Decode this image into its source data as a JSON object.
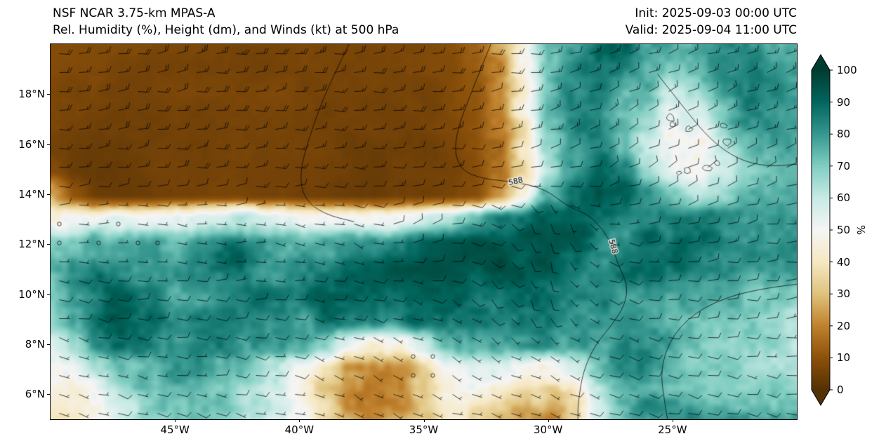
{
  "chart_data": {
    "type": "heatmap",
    "title": "NSF NCAR 3.75-km MPAS-A",
    "subtitle": "Rel. Humidity (%), Height (dm), and Winds (kt) at 500 hPa",
    "init_label": "Init: 2025-09-03 00:00 UTC",
    "valid_label": "Valid: 2025-09-04 11:00 UTC",
    "lon_range": [
      -50,
      -20
    ],
    "lat_range": [
      5,
      20
    ],
    "axes": {
      "x_ticks": [
        {
          "label": "45°W",
          "lon": -45
        },
        {
          "label": "40°W",
          "lon": -40
        },
        {
          "label": "35°W",
          "lon": -35
        },
        {
          "label": "30°W",
          "lon": -30
        },
        {
          "label": "25°W",
          "lon": -25
        }
      ],
      "y_ticks": [
        {
          "label": "6°N",
          "lat": 6
        },
        {
          "label": "8°N",
          "lat": 8
        },
        {
          "label": "10°N",
          "lat": 10
        },
        {
          "label": "12°N",
          "lat": 12
        },
        {
          "label": "14°N",
          "lat": 14
        },
        {
          "label": "16°N",
          "lat": 16
        },
        {
          "label": "18°N",
          "lat": 18
        }
      ]
    },
    "colorbar": {
      "label": "%",
      "ticks": [
        0,
        10,
        20,
        30,
        40,
        50,
        60,
        70,
        80,
        90,
        100
      ],
      "extend": "both",
      "stops": [
        {
          "v": 0,
          "c": "#543005"
        },
        {
          "v": 10,
          "c": "#8c510a"
        },
        {
          "v": 20,
          "c": "#bf812d"
        },
        {
          "v": 30,
          "c": "#dfc27d"
        },
        {
          "v": 40,
          "c": "#f6e8c3"
        },
        {
          "v": 50,
          "c": "#f5f5f5"
        },
        {
          "v": 60,
          "c": "#c7eae5"
        },
        {
          "v": 70,
          "c": "#80cdc1"
        },
        {
          "v": 80,
          "c": "#35978f"
        },
        {
          "v": 90,
          "c": "#01665e"
        },
        {
          "v": 100,
          "c": "#003c30"
        }
      ]
    },
    "rh_field": {
      "units": "%",
      "lon_start": -50,
      "lon_step": 1,
      "lat_start": 20,
      "lat_step": -1,
      "values": [
        [
          8,
          8,
          7,
          7,
          7,
          7,
          7,
          7,
          7,
          7,
          7,
          7,
          7,
          7,
          8,
          8,
          9,
          14,
          28,
          55,
          78,
          85,
          88,
          86,
          80,
          76,
          80,
          86,
          88,
          86,
          85
        ],
        [
          7,
          7,
          7,
          6,
          6,
          6,
          6,
          6,
          6,
          6,
          6,
          6,
          6,
          7,
          7,
          8,
          9,
          13,
          26,
          50,
          75,
          84,
          88,
          84,
          78,
          72,
          76,
          84,
          87,
          85,
          84
        ],
        [
          6,
          6,
          6,
          6,
          6,
          6,
          6,
          6,
          6,
          6,
          6,
          6,
          6,
          6,
          7,
          7,
          9,
          12,
          24,
          46,
          72,
          83,
          87,
          82,
          76,
          68,
          70,
          80,
          85,
          83,
          82
        ],
        [
          6,
          6,
          5,
          5,
          5,
          5,
          5,
          5,
          5,
          5,
          5,
          5,
          6,
          6,
          6,
          7,
          8,
          11,
          22,
          43,
          70,
          81,
          85,
          80,
          70,
          60,
          62,
          74,
          82,
          81,
          80
        ],
        [
          5,
          5,
          5,
          5,
          5,
          5,
          5,
          5,
          5,
          5,
          5,
          5,
          5,
          6,
          6,
          6,
          8,
          10,
          20,
          41,
          67,
          79,
          83,
          76,
          62,
          50,
          48,
          62,
          75,
          78,
          79
        ],
        [
          8,
          5,
          5,
          5,
          5,
          5,
          5,
          5,
          5,
          5,
          5,
          5,
          5,
          5,
          6,
          6,
          7,
          9,
          18,
          39,
          66,
          80,
          85,
          78,
          60,
          45,
          42,
          56,
          72,
          76,
          78
        ],
        [
          30,
          10,
          5,
          5,
          5,
          5,
          5,
          5,
          5,
          5,
          5,
          5,
          5,
          5,
          6,
          6,
          7,
          9,
          20,
          46,
          76,
          88,
          91,
          86,
          76,
          62,
          56,
          64,
          74,
          77,
          79
        ],
        [
          48,
          52,
          55,
          54,
          53,
          55,
          56,
          55,
          54,
          55,
          56,
          55,
          54,
          56,
          58,
          61,
          66,
          73,
          81,
          86,
          89,
          91,
          89,
          86,
          83,
          80,
          78,
          77,
          76,
          77,
          79
        ],
        [
          70,
          74,
          78,
          80,
          78,
          76,
          80,
          82,
          80,
          78,
          80,
          82,
          85,
          88,
          90,
          93,
          95,
          95,
          92,
          90,
          92,
          91,
          88,
          86,
          90,
          86,
          82,
          80,
          78,
          78,
          80
        ],
        [
          75,
          80,
          85,
          82,
          80,
          82,
          85,
          88,
          85,
          82,
          85,
          88,
          90,
          92,
          95,
          96,
          95,
          92,
          90,
          92,
          95,
          90,
          86,
          88,
          92,
          88,
          82,
          80,
          78,
          78,
          78
        ],
        [
          72,
          80,
          88,
          90,
          85,
          80,
          85,
          90,
          92,
          88,
          85,
          88,
          90,
          88,
          85,
          88,
          90,
          88,
          85,
          88,
          90,
          88,
          85,
          82,
          85,
          82,
          78,
          75,
          72,
          70,
          68
        ],
        [
          70,
          78,
          88,
          92,
          90,
          85,
          88,
          92,
          90,
          85,
          80,
          85,
          88,
          85,
          82,
          85,
          88,
          85,
          82,
          85,
          88,
          85,
          82,
          80,
          82,
          80,
          78,
          75,
          72,
          70,
          66
        ],
        [
          60,
          68,
          80,
          88,
          90,
          88,
          85,
          88,
          85,
          80,
          75,
          70,
          60,
          50,
          46,
          56,
          70,
          78,
          80,
          82,
          85,
          82,
          80,
          78,
          80,
          78,
          76,
          74,
          72,
          70,
          66
        ],
        [
          52,
          56,
          65,
          75,
          82,
          85,
          82,
          80,
          75,
          65,
          50,
          38,
          30,
          25,
          22,
          30,
          45,
          55,
          60,
          55,
          52,
          60,
          72,
          78,
          80,
          78,
          76,
          75,
          74,
          72,
          70
        ],
        [
          48,
          50,
          56,
          65,
          72,
          76,
          74,
          70,
          62,
          55,
          45,
          32,
          25,
          22,
          25,
          35,
          48,
          50,
          45,
          40,
          35,
          45,
          60,
          72,
          78,
          76,
          75,
          75,
          74,
          73,
          72
        ],
        [
          45,
          48,
          52,
          60,
          68,
          72,
          70,
          66,
          60,
          55,
          45,
          32,
          28,
          25,
          28,
          35,
          45,
          42,
          35,
          28,
          25,
          40,
          58,
          70,
          78,
          80,
          80,
          78,
          76,
          75,
          74
        ]
      ]
    },
    "wind_field": {
      "units": "kt",
      "lons": [
        -50,
        -47.5,
        -45,
        -42.5,
        -40,
        -37.5,
        -35,
        -32.5,
        -30,
        -27.5,
        -25,
        -22.5,
        -20
      ],
      "lats": [
        20,
        17.5,
        15,
        12.5,
        10,
        7.5,
        5
      ],
      "u": [
        [
          -18,
          -18,
          -19,
          -20,
          -20,
          -19,
          -18,
          -16,
          -15,
          -14,
          -13,
          -14,
          -15
        ],
        [
          -17,
          -17,
          -18,
          -18,
          -18,
          -17,
          -16,
          -14,
          -12,
          -12,
          -11,
          -12,
          -13
        ],
        [
          -14,
          -14,
          -15,
          -15,
          -14,
          -13,
          -12,
          -10,
          -9,
          -9,
          -8,
          -9,
          -10
        ],
        [
          -1,
          -1,
          -1,
          -2,
          -2,
          -4,
          -9,
          -12,
          -2,
          -6,
          -10,
          -11,
          -11
        ],
        [
          -8,
          -9,
          -10,
          -10,
          -9,
          -8,
          -8,
          -6,
          -3,
          -8,
          -10,
          -10,
          -9
        ],
        [
          -6,
          -7,
          -8,
          -8,
          -7,
          -5,
          -1,
          -4,
          -6,
          -8,
          -9,
          -8,
          -8
        ],
        [
          -5,
          -6,
          -7,
          -7,
          -6,
          -4,
          -3,
          -4,
          -6,
          -8,
          -9,
          -9,
          -8
        ]
      ],
      "v": [
        [
          -2,
          -2,
          -3,
          -3,
          -2,
          -2,
          -2,
          -1,
          -2,
          -3,
          -4,
          -4,
          -3
        ],
        [
          -2,
          -2,
          -2,
          -2,
          -2,
          -1,
          -1,
          -2,
          -3,
          -5,
          -6,
          -5,
          -4
        ],
        [
          -1,
          -1,
          -1,
          -1,
          -1,
          0,
          0,
          -1,
          -2,
          -4,
          -5,
          -4,
          -3
        ],
        [
          0,
          0,
          1,
          0,
          1,
          2,
          -6,
          4,
          12,
          2,
          -2,
          -2,
          -2
        ],
        [
          1,
          1,
          0,
          0,
          1,
          2,
          3,
          6,
          8,
          3,
          0,
          -1,
          -1
        ],
        [
          2,
          2,
          1,
          1,
          2,
          3,
          1,
          2,
          4,
          3,
          2,
          1,
          0
        ],
        [
          2,
          2,
          2,
          2,
          2,
          2,
          1,
          1,
          2,
          2,
          2,
          2,
          1
        ]
      ]
    },
    "height_contours": {
      "units": "dm",
      "paths": [
        [
          [
            -32.3,
            20
          ],
          [
            -33.0,
            18.3
          ],
          [
            -33.8,
            16.2
          ],
          [
            -33.6,
            15.0
          ],
          [
            -32.6,
            14.6
          ],
          [
            -31.3,
            14.5
          ],
          [
            -30.1,
            14.2
          ],
          [
            -29.2,
            13.5
          ],
          [
            -28.4,
            13.2
          ],
          [
            -27.8,
            12.6
          ],
          [
            -27.4,
            11.9
          ],
          [
            -27.2,
            11.2
          ],
          [
            -26.8,
            10.4
          ],
          [
            -26.9,
            9.6
          ],
          [
            -27.4,
            8.8
          ],
          [
            -28.1,
            8.0
          ],
          [
            -28.6,
            6.9
          ],
          [
            -28.8,
            5.6
          ],
          [
            -28.8,
            5.0
          ]
        ],
        [
          [
            -25.6,
            18.8
          ],
          [
            -24.5,
            17.4
          ],
          [
            -23.5,
            16.2
          ],
          [
            -22.4,
            15.4
          ],
          [
            -21.2,
            15.1
          ],
          [
            -20.0,
            15.2
          ]
        ],
        [
          [
            -20.0,
            10.4
          ],
          [
            -21.8,
            10.2
          ],
          [
            -23.8,
            9.5
          ],
          [
            -25.0,
            8.4
          ],
          [
            -25.5,
            7.0
          ],
          [
            -25.3,
            5.6
          ],
          [
            -25.2,
            5.0
          ]
        ],
        [
          [
            -38.0,
            20
          ],
          [
            -38.9,
            18.2
          ],
          [
            -39.6,
            16.3
          ],
          [
            -40.0,
            14.8
          ],
          [
            -39.8,
            13.8
          ],
          [
            -39.0,
            13.2
          ],
          [
            -37.8,
            12.9
          ]
        ]
      ],
      "labels": [
        {
          "text": "588",
          "lon": -31.3,
          "lat": 14.5,
          "rot": -12
        },
        {
          "text": "588",
          "lon": -27.4,
          "lat": 11.9,
          "rot": 74
        }
      ]
    },
    "islands": [
      {
        "lon": -25.1,
        "lat": 17.05,
        "r": 0.18
      },
      {
        "lon": -25.0,
        "lat": 16.8,
        "r": 0.12
      },
      {
        "lon": -24.35,
        "lat": 16.6,
        "r": 0.15
      },
      {
        "lon": -22.95,
        "lat": 16.75,
        "r": 0.13
      },
      {
        "lon": -22.8,
        "lat": 16.1,
        "r": 0.17
      },
      {
        "lon": -23.2,
        "lat": 15.25,
        "r": 0.12
      },
      {
        "lon": -23.62,
        "lat": 15.05,
        "r": 0.18
      },
      {
        "lon": -24.4,
        "lat": 14.95,
        "r": 0.14
      },
      {
        "lon": -24.75,
        "lat": 14.85,
        "r": 0.1
      }
    ]
  }
}
